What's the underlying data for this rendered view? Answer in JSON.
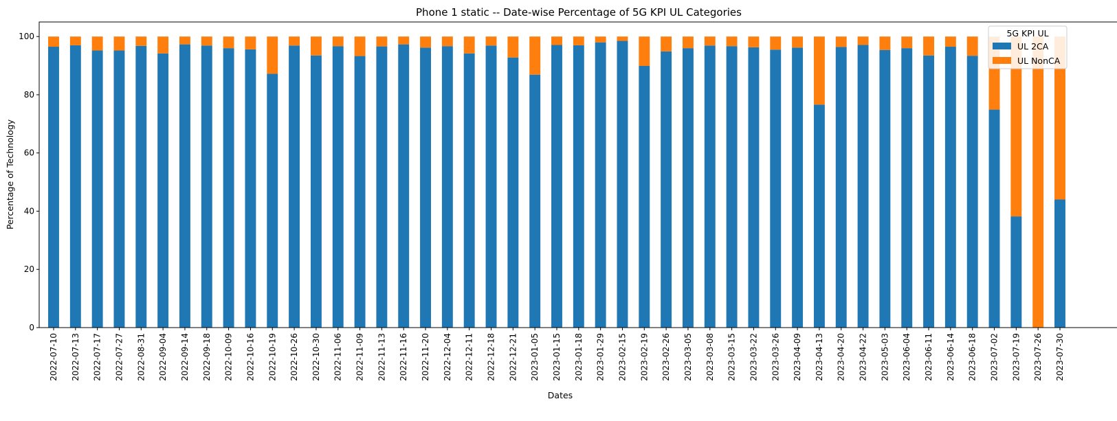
{
  "chart_data": {
    "type": "bar",
    "stacked": true,
    "title": "Phone 1 static -- Date-wise Percentage of 5G KPI UL Categories",
    "xlabel": "Dates",
    "ylabel": "Percentage of Technology",
    "ylim": [
      0,
      105
    ],
    "yticks": [
      0,
      20,
      40,
      60,
      80,
      100
    ],
    "grid": false,
    "legend": {
      "title": "5G KPI UL",
      "placement": "top-right"
    },
    "categories": [
      "2022-07-10",
      "2022-07-13",
      "2022-07-17",
      "2022-07-27",
      "2022-08-31",
      "2022-09-04",
      "2022-09-14",
      "2022-09-18",
      "2022-10-09",
      "2022-10-16",
      "2022-10-19",
      "2022-10-26",
      "2022-10-30",
      "2022-11-06",
      "2022-11-09",
      "2022-11-13",
      "2022-11-16",
      "2022-11-20",
      "2022-12-04",
      "2022-12-11",
      "2022-12-18",
      "2022-12-21",
      "2023-01-05",
      "2023-01-15",
      "2023-01-18",
      "2023-01-29",
      "2023-02-15",
      "2023-02-19",
      "2023-02-26",
      "2023-03-05",
      "2023-03-08",
      "2023-03-15",
      "2023-03-22",
      "2023-03-26",
      "2023-04-09",
      "2023-04-13",
      "2023-04-20",
      "2023-04-22",
      "2023-05-03",
      "2023-06-04",
      "2023-06-11",
      "2023-06-14",
      "2023-06-18",
      "2023-07-02",
      "2023-07-19",
      "2023-07-26",
      "2023-07-30"
    ],
    "series": [
      {
        "name": "UL 2CA",
        "color": "#1f77b4",
        "values": [
          96.5,
          97,
          95.2,
          95.2,
          96.8,
          94.2,
          97.3,
          96.9,
          96,
          95.6,
          87.2,
          96.9,
          93.5,
          96.7,
          93.3,
          96.6,
          97.3,
          96.2,
          96.7,
          94.2,
          96.9,
          92.8,
          86.9,
          97.1,
          97,
          98,
          98.5,
          89.9,
          94.9,
          96,
          96.9,
          96.7,
          96.3,
          95.5,
          96.2,
          76.6,
          96.4,
          97.1,
          95.4,
          96,
          93.5,
          96.5,
          93.4,
          74.9,
          38.2,
          0,
          44
        ]
      },
      {
        "name": "UL NonCA",
        "color": "#ff7f0e",
        "values": [
          3.5,
          3,
          4.8,
          4.8,
          3.2,
          5.8,
          2.7,
          3.1,
          4,
          4.4,
          12.8,
          3.1,
          6.5,
          3.3,
          6.7,
          3.4,
          2.7,
          3.8,
          3.3,
          5.8,
          3.1,
          7.2,
          13.1,
          2.9,
          3,
          2,
          1.5,
          10.1,
          5.1,
          4,
          3.1,
          3.3,
          3.7,
          4.5,
          3.8,
          23.4,
          3.6,
          2.9,
          4.6,
          4,
          6.5,
          3.5,
          6.6,
          25.1,
          61.8,
          100,
          56
        ]
      }
    ]
  }
}
